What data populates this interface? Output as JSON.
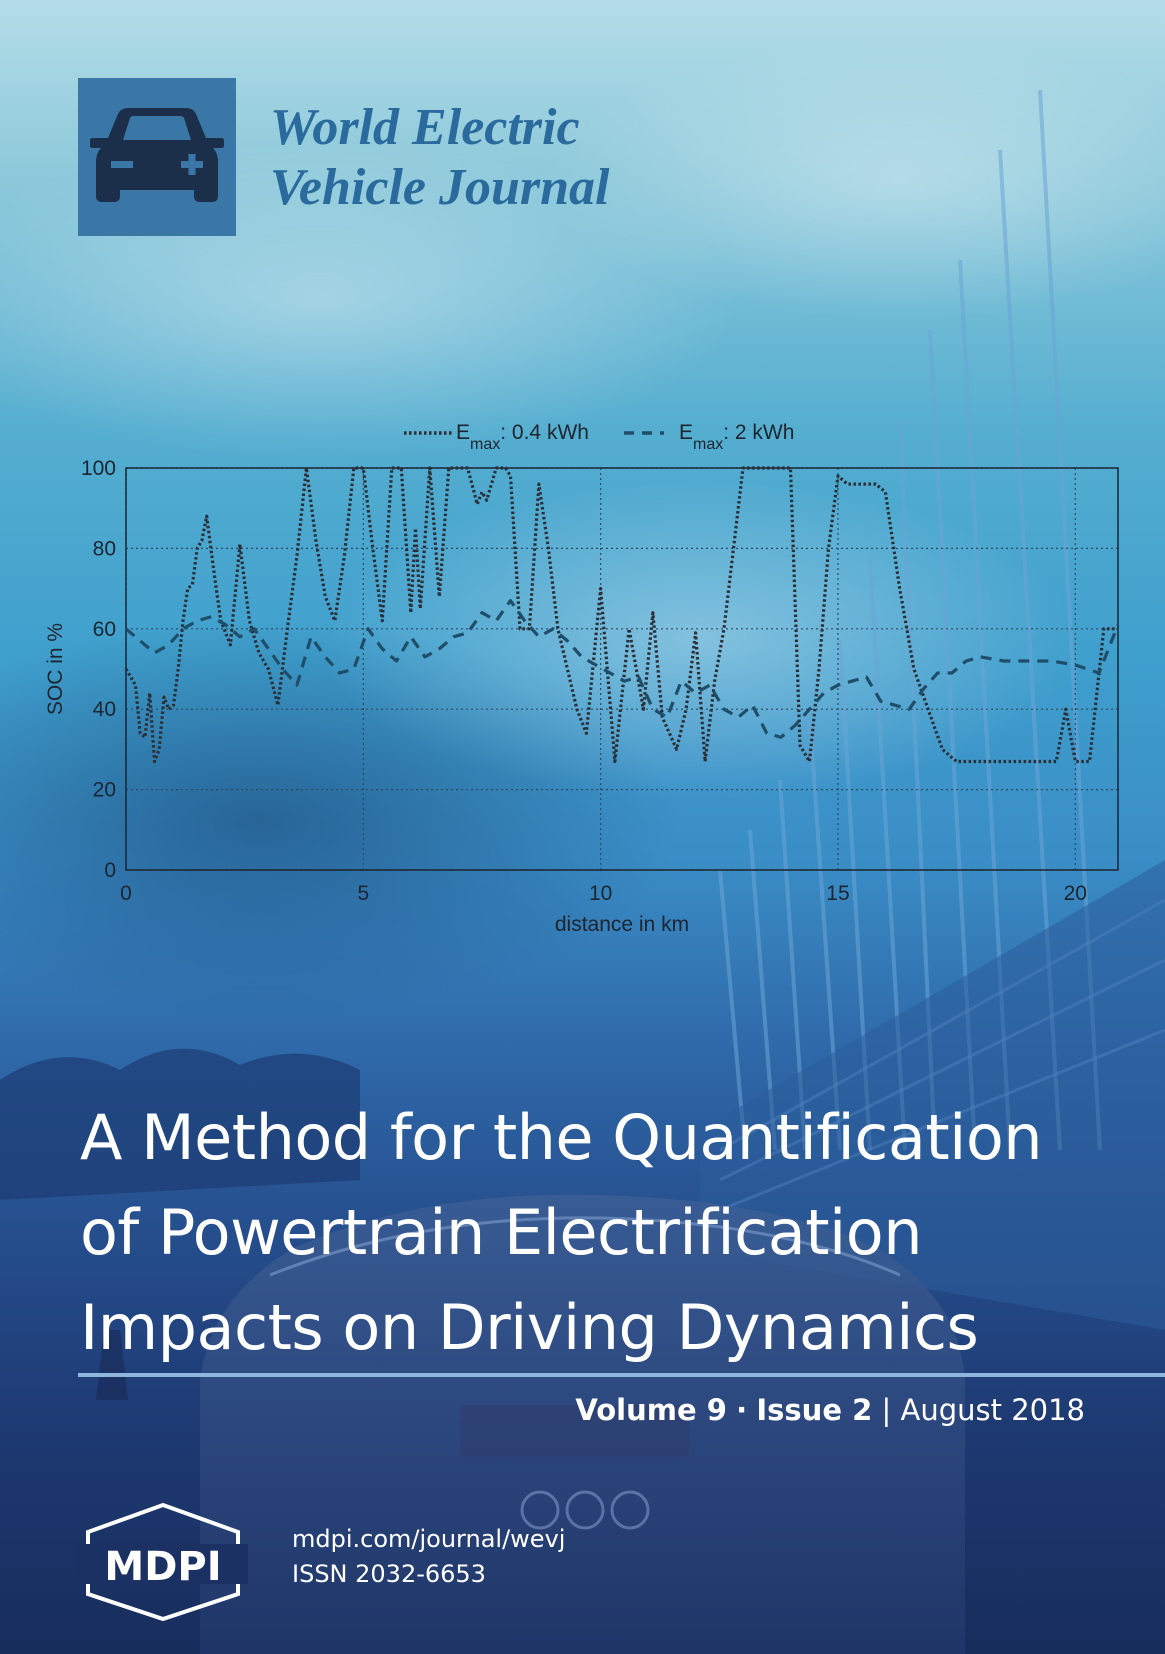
{
  "journal": {
    "title_line1": "World Electric",
    "title_line2": "Vehicle Journal"
  },
  "article": {
    "title_line1": "A Method for the Quantification",
    "title_line2": "of Powertrain Electrification",
    "title_line3": "Impacts on Driving Dynamics"
  },
  "issue": {
    "volume": "Volume 9",
    "separator": "·",
    "issue": "Issue 2",
    "bar": "|",
    "date": "August 2018"
  },
  "publisher": {
    "logo_text": "MDPI",
    "url": "mdpi.com/journal/wevj",
    "issn": "ISSN 2032-6653"
  },
  "chart_data": {
    "type": "line",
    "xlabel": "distance in km",
    "ylabel": "SOC in %",
    "xlim": [
      0,
      20.9
    ],
    "ylim": [
      0,
      100
    ],
    "xticks": [
      0,
      5,
      10,
      15,
      20
    ],
    "yticks": [
      0,
      20,
      40,
      60,
      80,
      100
    ],
    "grid": true,
    "legend_position": "top",
    "series": [
      {
        "name": "E_max: 0.4 kWh",
        "style": "dotted",
        "x": [
          0,
          0.1,
          0.2,
          0.3,
          0.4,
          0.5,
          0.6,
          0.7,
          0.8,
          0.9,
          1.0,
          1.1,
          1.2,
          1.3,
          1.4,
          1.5,
          1.6,
          1.7,
          1.8,
          1.9,
          2.0,
          2.2,
          2.4,
          2.6,
          2.8,
          3.0,
          3.2,
          3.4,
          3.6,
          3.8,
          4.0,
          4.2,
          4.4,
          4.6,
          4.8,
          5.0,
          5.2,
          5.4,
          5.6,
          5.8,
          6.0,
          6.1,
          6.2,
          6.4,
          6.6,
          6.8,
          7.0,
          7.2,
          7.4,
          7.5,
          7.6,
          7.8,
          7.9,
          8.0,
          8.1,
          8.3,
          8.5,
          8.7,
          8.9,
          9.1,
          9.3,
          9.5,
          9.7,
          10.0,
          10.3,
          10.6,
          10.9,
          11.1,
          11.3,
          11.6,
          11.8,
          12.0,
          12.2,
          12.4,
          12.6,
          12.8,
          13.0,
          13.2,
          13.4,
          13.6,
          13.8,
          14.0,
          14.2,
          14.4,
          14.6,
          14.8,
          15.0,
          15.2,
          15.4,
          15.6,
          15.8,
          16.0,
          16.3,
          16.6,
          16.9,
          17.2,
          17.5,
          17.8,
          18.1,
          18.4,
          18.7,
          19.0,
          19.2,
          19.4,
          19.6,
          19.8,
          20.0,
          20.3,
          20.6,
          20.9
        ],
        "y": [
          50,
          48,
          46,
          34,
          33,
          44,
          27,
          30,
          43,
          40,
          41,
          50,
          62,
          70,
          71,
          80,
          82,
          88,
          79,
          70,
          62,
          56,
          81,
          62,
          54,
          50,
          41,
          60,
          78,
          100,
          82,
          68,
          62,
          78,
          100,
          100,
          80,
          62,
          100,
          100,
          64,
          85,
          65,
          100,
          68,
          100,
          100,
          100,
          91,
          94,
          92,
          100,
          100,
          100,
          98,
          60,
          60,
          96,
          80,
          60,
          50,
          40,
          34,
          70,
          27,
          60,
          40,
          64,
          38,
          30,
          40,
          59,
          27,
          47,
          60,
          80,
          100,
          100,
          100,
          100,
          100,
          100,
          31,
          27,
          50,
          80,
          98,
          96,
          96,
          96,
          96,
          94,
          70,
          50,
          40,
          30,
          27,
          27,
          27,
          27,
          27,
          27,
          27,
          27,
          27,
          40,
          27,
          27,
          60,
          60
        ]
      },
      {
        "name": "E_max: 2 kWh",
        "style": "dashed",
        "x": [
          0,
          0.3,
          0.6,
          0.9,
          1.2,
          1.5,
          1.8,
          2.1,
          2.4,
          2.7,
          3.0,
          3.3,
          3.6,
          3.9,
          4.2,
          4.5,
          4.8,
          5.1,
          5.4,
          5.7,
          6.0,
          6.3,
          6.6,
          6.9,
          7.2,
          7.5,
          7.8,
          8.1,
          8.4,
          8.7,
          9.0,
          9.3,
          9.6,
          9.9,
          10.2,
          10.5,
          10.8,
          11.1,
          11.4,
          11.7,
          12.0,
          12.3,
          12.6,
          12.9,
          13.2,
          13.5,
          13.8,
          14.1,
          14.4,
          14.7,
          15.0,
          15.3,
          15.6,
          15.9,
          16.2,
          16.5,
          16.8,
          17.1,
          17.4,
          17.7,
          18.0,
          18.5,
          19.0,
          19.5,
          20.0,
          20.5,
          20.9
        ],
        "y": [
          60,
          57,
          54,
          56,
          60,
          62,
          63,
          61,
          58,
          60,
          55,
          50,
          46,
          58,
          53,
          49,
          50,
          60,
          55,
          52,
          58,
          53,
          55,
          58,
          59,
          64,
          62,
          67,
          62,
          58,
          60,
          57,
          53,
          51,
          49,
          47,
          48,
          40,
          38,
          47,
          44,
          46,
          40,
          38,
          41,
          34,
          33,
          36,
          40,
          44,
          46,
          47,
          48,
          42,
          41,
          40,
          45,
          49,
          49,
          52,
          53,
          52,
          52,
          52,
          51,
          49,
          61
        ]
      }
    ]
  }
}
